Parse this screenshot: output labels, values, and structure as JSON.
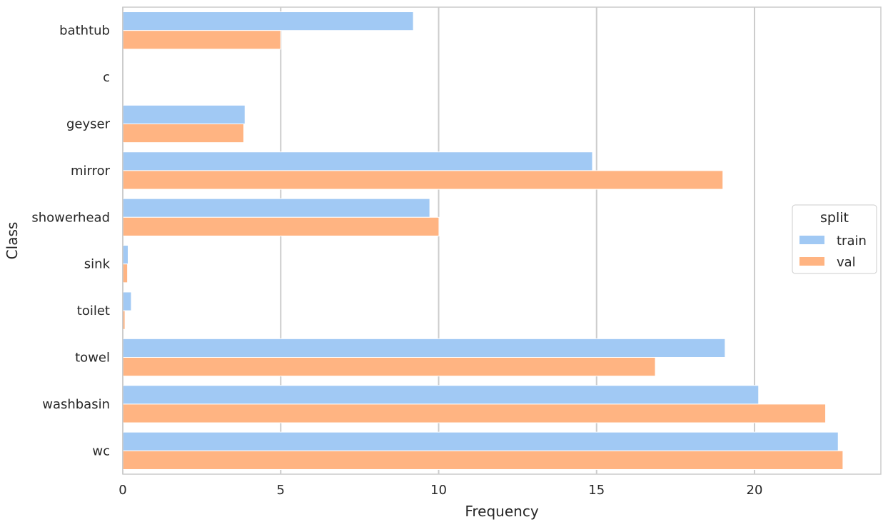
{
  "chart_data": {
    "type": "bar",
    "orientation": "horizontal",
    "categories": [
      "bathtub",
      "c",
      "geyser",
      "mirror",
      "showerhead",
      "sink",
      "toilet",
      "towel",
      "washbasin",
      "wc"
    ],
    "series": [
      {
        "name": "train",
        "values": [
          9.2,
          0,
          3.87,
          14.87,
          9.72,
          0.17,
          0.27,
          19.07,
          20.13,
          22.65
        ],
        "color": "#a1c9f4"
      },
      {
        "name": "val",
        "values": [
          5.0,
          0,
          3.83,
          19.0,
          10.01,
          0.15,
          0.07,
          16.86,
          22.25,
          22.8
        ],
        "color": "#ffb482"
      }
    ],
    "xlabel": "Frequency",
    "ylabel": "Class",
    "xlim": [
      0,
      24
    ],
    "xticks": [
      0,
      5,
      10,
      15,
      20
    ],
    "xtick_labels": [
      "0",
      "5",
      "10",
      "15",
      "20"
    ],
    "grid": "vertical",
    "legend": {
      "title": "split",
      "placement": "center-right"
    }
  }
}
